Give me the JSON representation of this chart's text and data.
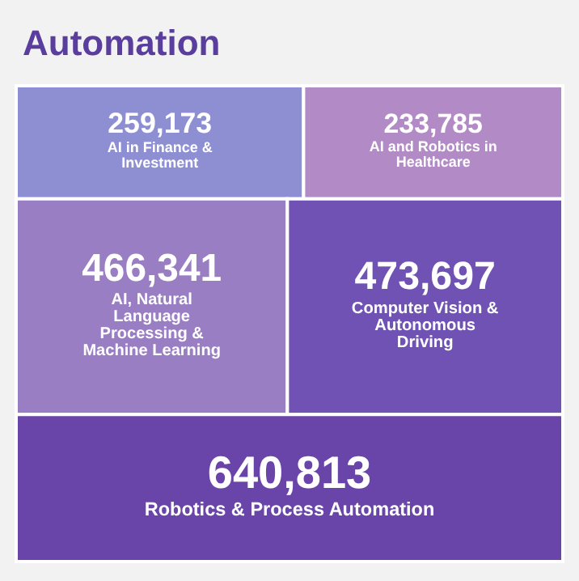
{
  "chart_data": {
    "type": "other",
    "title": "Automation",
    "categories": [
      "AI in Finance & Investment",
      "AI and Robotics in Healthcare",
      "AI, Natural Language Processing & Machine Learning",
      "Computer Vision & Autonomous Driving",
      "Robotics & Process Automation"
    ],
    "values": [
      259173,
      233785,
      466341,
      473697,
      640813
    ],
    "colors": [
      "#8e8fd2",
      "#b18ac6",
      "#9a7ec4",
      "#6f52b4",
      "#6a45a9"
    ],
    "value_labels": [
      "259,173",
      "233,785",
      "466,341",
      "473,697",
      "640,813"
    ]
  }
}
